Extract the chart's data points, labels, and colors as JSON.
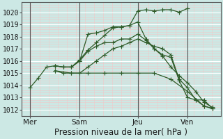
{
  "xlabel": "Pression niveau de la mer( hPa )",
  "bg_color": "#cce8e4",
  "grid_color_minor": "#f0c8c8",
  "grid_color_major": "#ffffff",
  "line_color": "#2d5a27",
  "ylim": [
    1011.5,
    1020.8
  ],
  "yticks": [
    1012,
    1013,
    1014,
    1015,
    1016,
    1017,
    1018,
    1019,
    1020
  ],
  "day_labels": [
    "Mer",
    "Sam",
    "Jeu",
    "Ven"
  ],
  "day_positions": [
    0,
    3,
    6.5,
    9.5
  ],
  "vline_positions": [
    0,
    3,
    6.5,
    9.5
  ],
  "xlim": [
    -0.5,
    11.5
  ],
  "lines": [
    {
      "x": [
        0.0,
        0.5,
        1.0,
        1.5,
        2.0,
        2.5,
        3.0,
        3.5,
        4.0,
        4.5,
        5.0,
        5.5,
        6.0,
        6.5,
        7.0,
        7.5,
        8.0,
        8.5,
        9.0,
        9.5
      ],
      "y": [
        1013.8,
        1014.6,
        1015.5,
        1015.6,
        1015.5,
        1015.5,
        1016.1,
        1016.9,
        1017.5,
        1018.1,
        1018.7,
        1018.8,
        1018.9,
        1020.1,
        1020.2,
        1020.1,
        1020.2,
        1020.2,
        1020.0,
        1020.3
      ]
    },
    {
      "x": [
        1.5,
        2.0,
        2.5,
        3.0,
        3.5,
        4.0,
        4.5,
        5.0,
        5.5,
        6.0,
        6.5,
        7.0,
        7.5,
        8.0,
        8.5,
        9.0,
        9.5,
        10.0,
        10.5,
        11.0
      ],
      "y": [
        1015.6,
        1015.5,
        1015.5,
        1016.0,
        1018.2,
        1018.3,
        1018.5,
        1018.8,
        1018.8,
        1018.9,
        1019.2,
        1017.8,
        1017.0,
        1016.5,
        1016.3,
        1014.4,
        1013.0,
        1012.8,
        1012.8,
        1012.1
      ]
    },
    {
      "x": [
        1.5,
        2.0,
        2.5,
        3.0,
        3.5,
        4.0,
        4.5,
        5.0,
        5.5,
        6.0,
        6.5,
        7.0,
        7.5,
        8.0,
        8.5,
        9.0,
        9.5,
        10.0,
        10.5,
        11.0
      ],
      "y": [
        1015.6,
        1015.5,
        1015.5,
        1016.0,
        1016.8,
        1017.2,
        1017.5,
        1017.5,
        1017.8,
        1017.8,
        1018.2,
        1017.7,
        1017.0,
        1016.4,
        1015.5,
        1014.8,
        1014.2,
        1013.5,
        1012.6,
        1012.2
      ]
    },
    {
      "x": [
        1.5,
        2.0,
        2.5,
        3.0,
        3.5,
        4.0,
        4.5,
        5.0,
        5.5,
        6.0,
        6.5,
        7.0,
        7.5,
        8.0,
        8.5,
        9.0,
        9.5,
        10.0,
        10.5,
        11.0
      ],
      "y": [
        1015.2,
        1015.0,
        1015.0,
        1015.0,
        1015.5,
        1016.0,
        1016.5,
        1017.0,
        1017.2,
        1017.5,
        1017.8,
        1017.5,
        1017.2,
        1017.0,
        1016.5,
        1014.5,
        1013.8,
        1012.8,
        1012.3,
        1012.1
      ]
    },
    {
      "x": [
        1.5,
        2.5,
        3.5,
        4.5,
        5.5,
        6.5,
        7.5,
        8.5,
        9.5,
        10.5,
        11.0
      ],
      "y": [
        1015.2,
        1015.0,
        1015.0,
        1015.0,
        1015.0,
        1015.0,
        1015.0,
        1014.5,
        1013.5,
        1012.3,
        1012.1
      ]
    }
  ],
  "xlabel_fontsize": 8.5,
  "tick_fontsize": 7.5,
  "ytick_fontsize": 7
}
